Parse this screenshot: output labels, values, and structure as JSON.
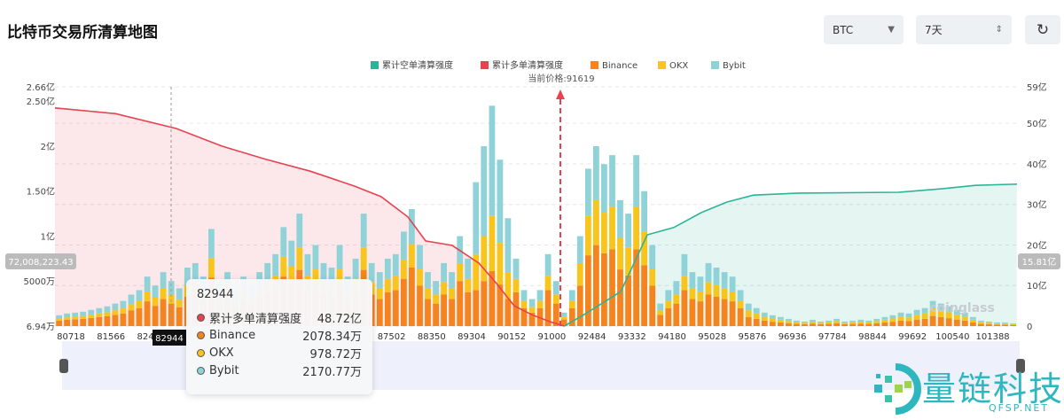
{
  "header": {
    "title": "比特币交易所清算地图",
    "symbol_select": "BTC",
    "range_select": "7天",
    "refresh_icon": "refresh-icon"
  },
  "colors": {
    "short_cumulative": "#2bb596",
    "long_cumulative": "#e8414f",
    "binance": "#f5841f",
    "okx": "#f7c51b",
    "bybit": "#8fd3d8"
  },
  "chart_data": {
    "type": "bar",
    "legend": [
      "累计空单清算强度",
      "累计多单清算强度",
      "Binance",
      "OKX",
      "Bybit"
    ],
    "legend_position": "top-center",
    "current_price_label": "当前价格:91619",
    "current_price": 91619,
    "x_tick_labels": [
      "80718",
      "81566",
      "82414",
      "",
      "",
      "",
      "",
      "",
      "87502",
      "88350",
      "89304",
      "90152",
      "91000",
      "92484",
      "93332",
      "94180",
      "95028",
      "95876",
      "96936",
      "97784",
      "98844",
      "99692",
      "100540",
      "101388"
    ],
    "left_axis": {
      "unit": "亿",
      "ylim": [
        0,
        2.66
      ],
      "ticks": [
        {
          "v": 0,
          "label": "6.94万"
        },
        {
          "v": 0.5,
          "label": "5000万"
        },
        {
          "v": 1,
          "label": "1亿"
        },
        {
          "v": 1.5,
          "label": "1.50亿"
        },
        {
          "v": 2,
          "label": "2亿"
        },
        {
          "v": 2.5,
          "label": "2.50亿"
        },
        {
          "v": 2.66,
          "label": "2.66亿"
        }
      ]
    },
    "right_axis": {
      "unit": "亿",
      "ylim": [
        0,
        59
      ],
      "ticks": [
        {
          "v": 0,
          "label": "0"
        },
        {
          "v": 10,
          "label": "10亿"
        },
        {
          "v": 20,
          "label": "20亿"
        },
        {
          "v": 30,
          "label": "30亿"
        },
        {
          "v": 40,
          "label": "40亿"
        },
        {
          "v": 50,
          "label": "50亿"
        },
        {
          "v": 59,
          "label": "59亿"
        }
      ]
    },
    "grid": true,
    "bars_unit": "万",
    "series": [
      {
        "name": "Binance",
        "values": [
          600,
          700,
          750,
          800,
          900,
          1000,
          1100,
          1250,
          1400,
          1750,
          2000,
          2750,
          2250,
          3000,
          2500,
          2100,
          3250,
          3500,
          2750,
          5400,
          2500,
          3000,
          2000,
          2750,
          2250,
          3000,
          3500,
          4000,
          5500,
          4750,
          6250,
          4000,
          4500,
          3500,
          3250,
          4500,
          2750,
          3750,
          6250,
          3500,
          3000,
          3750,
          4000,
          5250,
          6500,
          4500,
          3000,
          2500,
          3500,
          3000,
          5000,
          3750,
          4000,
          5000,
          6125,
          4625,
          3000,
          3750,
          2000,
          1500,
          2000,
          4000,
          2500,
          750,
          2000,
          4500,
          7875,
          9000,
          8100,
          8550,
          6300,
          5625,
          8550,
          6750,
          4500,
          1250,
          2000,
          2500,
          4000,
          3000,
          2750,
          3500,
          3250,
          3000,
          2750,
          2000,
          1000,
          800,
          600,
          480,
          400,
          320,
          240,
          200,
          280,
          200,
          240,
          320,
          200,
          240,
          280,
          240,
          320,
          400,
          480,
          600,
          560,
          720,
          800,
          1120,
          1000,
          880,
          720,
          600,
          400,
          240,
          200,
          160,
          160,
          120
        ]
      },
      {
        "name": "OKX",
        "values": [
          240,
          280,
          300,
          320,
          360,
          400,
          440,
          500,
          560,
          700,
          800,
          1100,
          900,
          1200,
          1000,
          840,
          1300,
          1400,
          1100,
          2160,
          1000,
          1200,
          800,
          1100,
          900,
          1200,
          1400,
          1600,
          2200,
          1900,
          2500,
          1600,
          1800,
          1400,
          1300,
          1800,
          1100,
          1500,
          2500,
          1400,
          1200,
          1500,
          1600,
          2100,
          2600,
          1800,
          1200,
          1000,
          1400,
          1200,
          2000,
          1500,
          4000,
          5000,
          6125,
          4625,
          3000,
          1500,
          800,
          600,
          800,
          1600,
          1000,
          300,
          800,
          2500,
          4375,
          5000,
          4500,
          4750,
          3500,
          3125,
          4750,
          3750,
          1800,
          500,
          800,
          1000,
          1600,
          1200,
          1100,
          1400,
          1300,
          1200,
          1100,
          800,
          750,
          600,
          450,
          360,
          300,
          240,
          180,
          150,
          210,
          150,
          180,
          240,
          150,
          180,
          210,
          180,
          240,
          300,
          360,
          450,
          420,
          540,
          600,
          840,
          750,
          660,
          540,
          450,
          300,
          180,
          150,
          120,
          120,
          90
        ]
      },
      {
        "name": "Bybit",
        "values": [
          360,
          420,
          450,
          480,
          540,
          600,
          660,
          750,
          840,
          1050,
          1200,
          1650,
          1350,
          1800,
          1500,
          1260,
          1950,
          2100,
          1650,
          3240,
          1500,
          1800,
          1200,
          1650,
          1350,
          1800,
          2100,
          2400,
          3300,
          2850,
          3750,
          2400,
          2700,
          2100,
          1950,
          2700,
          1650,
          2250,
          3750,
          2100,
          1800,
          2250,
          2400,
          3150,
          3900,
          2700,
          1800,
          1500,
          2100,
          1800,
          3000,
          2250,
          8000,
          10000,
          12250,
          9250,
          6000,
          2250,
          1200,
          900,
          1200,
          2400,
          1500,
          450,
          1200,
          3000,
          5250,
          6000,
          5400,
          5700,
          4200,
          3750,
          5700,
          4500,
          2700,
          750,
          1200,
          1500,
          2400,
          1800,
          1650,
          2100,
          1950,
          1800,
          1650,
          1200,
          750,
          600,
          450,
          360,
          300,
          240,
          180,
          150,
          210,
          150,
          180,
          240,
          150,
          180,
          210,
          180,
          240,
          300,
          360,
          450,
          420,
          540,
          600,
          840,
          750,
          660,
          540,
          450,
          300,
          180,
          150,
          120,
          120,
          90
        ]
      }
    ],
    "long_cumulative": [
      [
        80380,
        53.8
      ],
      [
        81656,
        52.4
      ],
      [
        82944,
        48.72
      ],
      [
        83906,
        44.4
      ],
      [
        84848,
        41.1
      ],
      [
        85781,
        38.2
      ],
      [
        86722,
        34.5
      ],
      [
        87282,
        31.9
      ],
      [
        87850,
        26.9
      ],
      [
        88223,
        21.0
      ],
      [
        88837,
        19.9
      ],
      [
        89457,
        15.5
      ],
      [
        89830,
        10.5
      ],
      [
        90203,
        5.0
      ],
      [
        90576,
        2.8
      ],
      [
        90958,
        1.1
      ],
      [
        91460,
        0
      ]
    ],
    "short_cumulative": [
      [
        91460,
        0
      ],
      [
        92232,
        3
      ],
      [
        93094,
        8.5
      ],
      [
        93654,
        22.5
      ],
      [
        94214,
        24.3
      ],
      [
        94800,
        28
      ],
      [
        95342,
        30.6
      ],
      [
        95910,
        32.3
      ],
      [
        97084,
        32.8
      ],
      [
        99395,
        33
      ],
      [
        100330,
        33.9
      ],
      [
        101023,
        34.7
      ],
      [
        101900,
        35
      ]
    ],
    "hover": {
      "x_label": "82944",
      "left_axis_readout": "72,008,223.43",
      "right_axis_readout": "15.81亿"
    }
  },
  "tooltip": {
    "title": "82944",
    "rows": [
      {
        "label": "累计多单清算强度",
        "value": "48.72亿",
        "color": "#e8414f"
      },
      {
        "label": "Binance",
        "value": "2078.34万",
        "color": "#f5841f"
      },
      {
        "label": "OKX",
        "value": "978.72万",
        "color": "#f7c51b"
      },
      {
        "label": "Bybit",
        "value": "2170.77万",
        "color": "#8fd3d8"
      }
    ]
  },
  "watermarks": {
    "coinglass": "coinglass",
    "brand": "量链科技",
    "brand_sub": "QFSP.NET"
  }
}
